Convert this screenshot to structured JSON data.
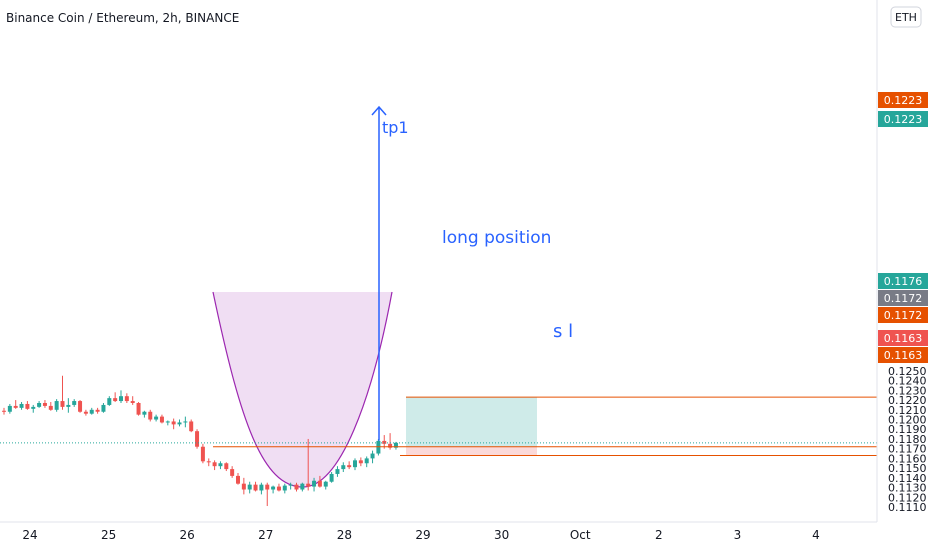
{
  "header": {
    "title": "Binance Coin / Ethereum, 2h, BINANCE",
    "currency_button": "ETH"
  },
  "chart_data": {
    "type": "candlestick",
    "title": "Binance Coin / Ethereum, 2h, BINANCE",
    "currency": "ETH",
    "y_ticks": [
      "0.1250",
      "0.1240",
      "0.1230",
      "0.1220",
      "0.1210",
      "0.1200",
      "0.1190",
      "0.1180",
      "0.1170",
      "0.1160",
      "0.1150",
      "0.1140",
      "0.1130",
      "0.1120",
      "0.1110"
    ],
    "y_tick_values": [
      0.125,
      0.124,
      0.123,
      0.122,
      0.121,
      0.12,
      0.119,
      0.118,
      0.117,
      0.116,
      0.115,
      0.114,
      0.113,
      0.112,
      0.111
    ],
    "x_ticks": [
      "24",
      "25",
      "26",
      "27",
      "28",
      "29",
      "30",
      "Oct",
      "2",
      "3",
      "4"
    ],
    "colors": {
      "up": "#26a69a",
      "down": "#ef5350",
      "orange": "#e65100",
      "blue": "#2962ff",
      "grey": "#787b86"
    },
    "candles": [
      [
        0.1209,
        0.1212,
        0.1205,
        0.1208
      ],
      [
        0.1208,
        0.1216,
        0.1206,
        0.1214
      ],
      [
        0.1214,
        0.122,
        0.1211,
        0.1212
      ],
      [
        0.1212,
        0.1218,
        0.121,
        0.1216
      ],
      [
        0.1216,
        0.1219,
        0.121,
        0.1211
      ],
      [
        0.1211,
        0.1215,
        0.1207,
        0.1213
      ],
      [
        0.1213,
        0.1219,
        0.1212,
        0.1217
      ],
      [
        0.1217,
        0.122,
        0.1212,
        0.1214
      ],
      [
        0.1214,
        0.1218,
        0.1209,
        0.121
      ],
      [
        0.121,
        0.1221,
        0.1208,
        0.1219
      ],
      [
        0.1219,
        0.1245,
        0.121,
        0.1213
      ],
      [
        0.1213,
        0.1222,
        0.1207,
        0.1215
      ],
      [
        0.1215,
        0.1221,
        0.1213,
        0.1219
      ],
      [
        0.1219,
        0.122,
        0.1207,
        0.1208
      ],
      [
        0.1208,
        0.121,
        0.1204,
        0.1206
      ],
      [
        0.1206,
        0.1212,
        0.1205,
        0.121
      ],
      [
        0.121,
        0.1212,
        0.1206,
        0.1208
      ],
      [
        0.1208,
        0.1217,
        0.1207,
        0.1215
      ],
      [
        0.1215,
        0.1224,
        0.1214,
        0.1222
      ],
      [
        0.1222,
        0.1228,
        0.1218,
        0.1219
      ],
      [
        0.1219,
        0.123,
        0.1217,
        0.1224
      ],
      [
        0.1224,
        0.1227,
        0.1217,
        0.1219
      ],
      [
        0.1219,
        0.1224,
        0.1215,
        0.1217
      ],
      [
        0.1217,
        0.1218,
        0.1204,
        0.1205
      ],
      [
        0.1205,
        0.1209,
        0.1202,
        0.1208
      ],
      [
        0.1208,
        0.121,
        0.1198,
        0.12
      ],
      [
        0.12,
        0.1205,
        0.1198,
        0.1203
      ],
      [
        0.1203,
        0.1205,
        0.1196,
        0.1197
      ],
      [
        0.1197,
        0.1199,
        0.1194,
        0.1198
      ],
      [
        0.1198,
        0.1201,
        0.119,
        0.1195
      ],
      [
        0.1195,
        0.12,
        0.1193,
        0.1197
      ],
      [
        0.1197,
        0.1203,
        0.1192,
        0.1198
      ],
      [
        0.1198,
        0.12,
        0.1187,
        0.1188
      ],
      [
        0.1188,
        0.119,
        0.117,
        0.1172
      ],
      [
        0.1172,
        0.1175,
        0.1155,
        0.1157
      ],
      [
        0.1157,
        0.116,
        0.1152,
        0.1156
      ],
      [
        0.1156,
        0.1158,
        0.1148,
        0.1152
      ],
      [
        0.1152,
        0.1157,
        0.1149,
        0.1155
      ],
      [
        0.1155,
        0.1156,
        0.1147,
        0.1149
      ],
      [
        0.1149,
        0.1152,
        0.114,
        0.1142
      ],
      [
        0.1142,
        0.1145,
        0.1133,
        0.1134
      ],
      [
        0.1134,
        0.114,
        0.1123,
        0.1128
      ],
      [
        0.1128,
        0.1136,
        0.1124,
        0.1133
      ],
      [
        0.1133,
        0.1136,
        0.1126,
        0.1127
      ],
      [
        0.1127,
        0.1135,
        0.1123,
        0.1133
      ],
      [
        0.1133,
        0.1135,
        0.1111,
        0.1128
      ],
      [
        0.1128,
        0.1132,
        0.1124,
        0.1131
      ],
      [
        0.1131,
        0.1134,
        0.1126,
        0.1127
      ],
      [
        0.1127,
        0.1134,
        0.1124,
        0.1132
      ],
      [
        0.1132,
        0.1135,
        0.1128,
        0.1133
      ],
      [
        0.1133,
        0.1135,
        0.1126,
        0.1128
      ],
      [
        0.1128,
        0.1135,
        0.1126,
        0.1134
      ],
      [
        0.1134,
        0.118,
        0.1127,
        0.1131
      ],
      [
        0.1131,
        0.114,
        0.1126,
        0.1137
      ],
      [
        0.1137,
        0.1142,
        0.113,
        0.1131
      ],
      [
        0.1131,
        0.1137,
        0.1128,
        0.1136
      ],
      [
        0.1136,
        0.1146,
        0.1135,
        0.1144
      ],
      [
        0.1144,
        0.1152,
        0.1141,
        0.1149
      ],
      [
        0.1149,
        0.1156,
        0.1146,
        0.1153
      ],
      [
        0.1153,
        0.1157,
        0.1149,
        0.1151
      ],
      [
        0.1151,
        0.116,
        0.1148,
        0.1158
      ],
      [
        0.1158,
        0.1161,
        0.1152,
        0.1155
      ],
      [
        0.1155,
        0.1162,
        0.1151,
        0.116
      ],
      [
        0.116,
        0.1168,
        0.1155,
        0.1165
      ],
      [
        0.1165,
        0.118,
        0.1163,
        0.1178
      ],
      [
        0.1178,
        0.1184,
        0.117,
        0.1175
      ],
      [
        0.1175,
        0.1186,
        0.1169,
        0.1171
      ],
      [
        0.1171,
        0.1177,
        0.1169,
        0.1176
      ]
    ],
    "last_price": 0.1176,
    "pattern_label": "",
    "annotations": {
      "target_label": "tp1",
      "position_label": "long position",
      "stop_label": "s l"
    },
    "levels": {
      "entry": 0.1172,
      "target": 0.1223,
      "stop": 0.1163
    },
    "price_badges": [
      {
        "value": "0.1223",
        "color": "#e65100"
      },
      {
        "value": "0.1223",
        "color": "#26a69a"
      },
      {
        "value": "0.1176",
        "color": "#26a69a"
      },
      {
        "value": "0.1172",
        "color": "#787b86"
      },
      {
        "value": "0.1172",
        "color": "#e65100"
      },
      {
        "value": "0.1163",
        "color": "#ef5350"
      },
      {
        "value": "0.1163",
        "color": "#e65100"
      }
    ]
  }
}
